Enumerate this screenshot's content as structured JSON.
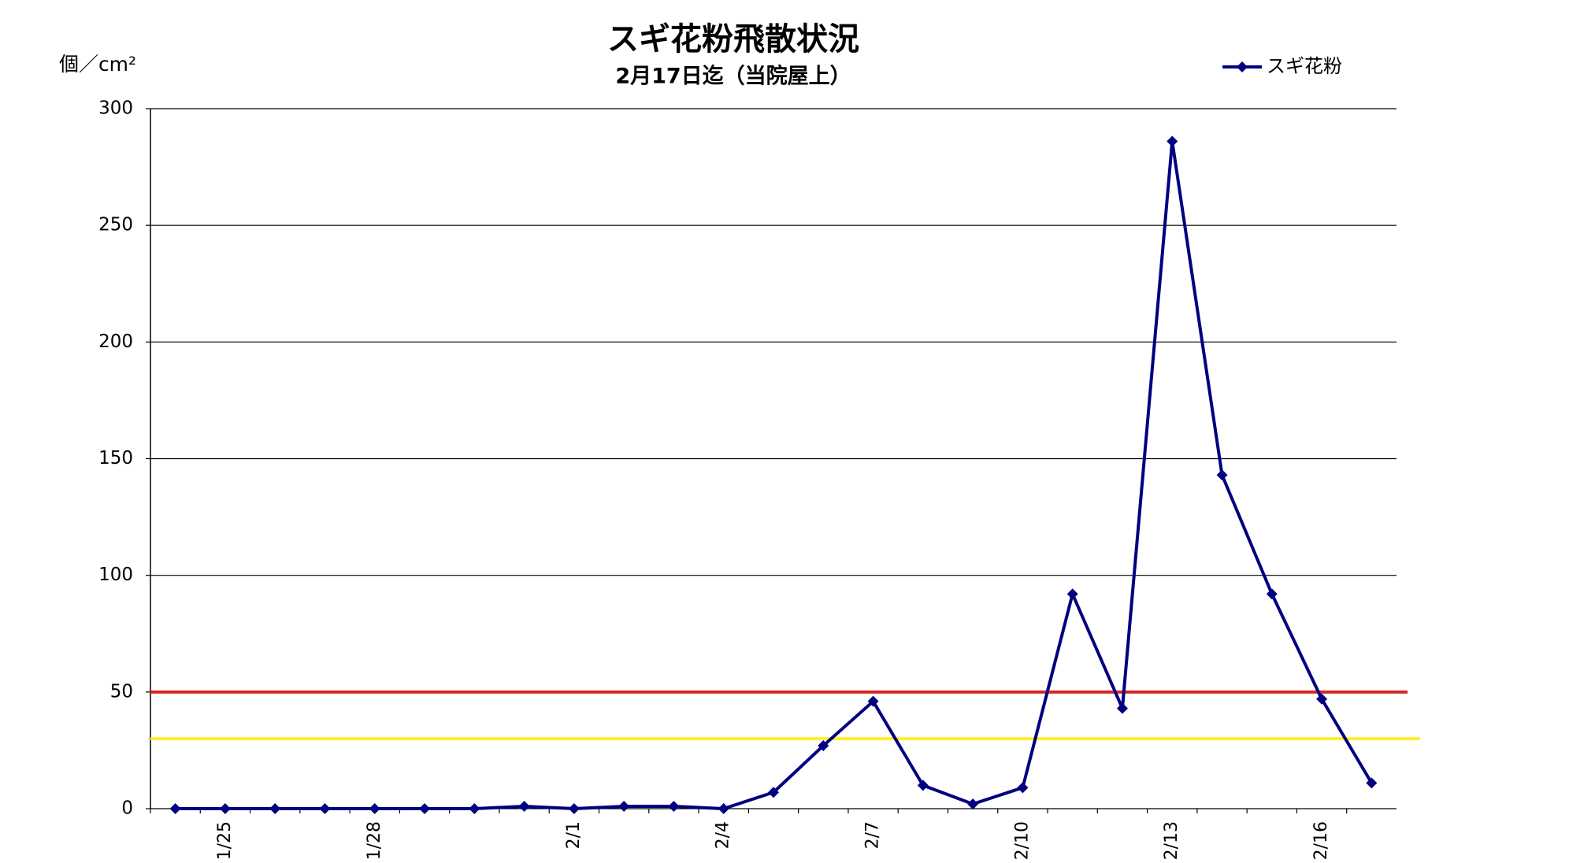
{
  "chart_data": {
    "type": "line",
    "title": "スギ花粉飛散状況",
    "subtitle": "2月17日迄（当院屋上）",
    "y_label": "個／cm²",
    "categories": [
      null,
      "1/25",
      null,
      null,
      "1/28",
      null,
      null,
      null,
      "2/1",
      null,
      null,
      "2/4",
      null,
      null,
      "2/7",
      null,
      null,
      "2/10",
      null,
      null,
      "2/13",
      null,
      null,
      "2/16",
      null
    ],
    "series": [
      {
        "name": "スギ花粉",
        "color": "#000080",
        "values": [
          0,
          0,
          0,
          0,
          0,
          0,
          0,
          1,
          0,
          1,
          1,
          0,
          7,
          27,
          46,
          10,
          2,
          9,
          92,
          43,
          286,
          143,
          92,
          47,
          11
        ]
      }
    ],
    "reference_lines": [
      {
        "value": 50,
        "color": "#d62728"
      },
      {
        "value": 30,
        "color": "#ffee33"
      }
    ],
    "ylim": [
      0,
      300
    ],
    "yticks": [
      0,
      50,
      100,
      150,
      200,
      250,
      300
    ],
    "grid": true,
    "legend": "top-right"
  }
}
